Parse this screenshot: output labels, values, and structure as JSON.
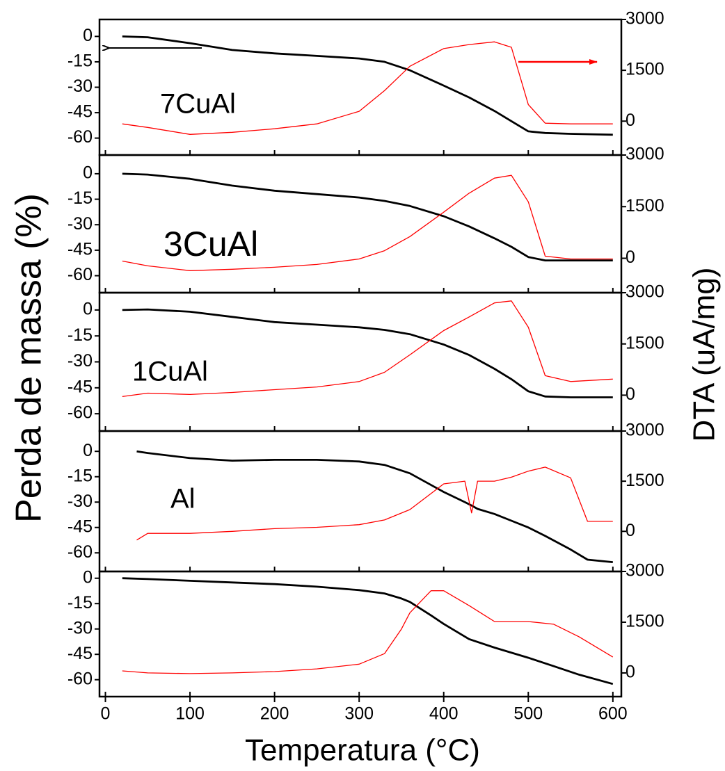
{
  "axes": {
    "xlabel": "Temperatura (°C)",
    "ylabel": "Perda de massa (%)",
    "y2label": "DTA (uA/mg)",
    "xlim": [
      -7,
      610
    ],
    "xticks": [
      0,
      100,
      200,
      300,
      400,
      500,
      600
    ]
  },
  "chart_data": [
    {
      "type": "line",
      "label": "7CuAl",
      "x": [
        20,
        50,
        100,
        150,
        200,
        250,
        300,
        330,
        360,
        400,
        430,
        460,
        480,
        500,
        520,
        550,
        600
      ],
      "ylim": [
        -70,
        10
      ],
      "yticks": [
        0,
        -15,
        -30,
        -45,
        -60
      ],
      "y2lim": [
        -1000,
        3000
      ],
      "y2ticks": [
        0,
        1500,
        3000
      ],
      "series": [
        {
          "color": "#000000",
          "axis": "y",
          "values": [
            0,
            -0.5,
            -4,
            -8,
            -10,
            -11.5,
            -13,
            -15,
            -20,
            -29,
            -36,
            -44,
            -50,
            -56,
            -57,
            -57.5,
            -58
          ]
        },
        {
          "color": "#ff0000",
          "axis": "y2",
          "values": [
            -80,
            -185,
            -390,
            -330,
            -225,
            -80,
            290,
            900,
            1620,
            2140,
            2260,
            2340,
            2180,
            490,
            -60,
            -80,
            -80
          ]
        }
      ]
    },
    {
      "type": "line",
      "label": "3CuAl",
      "x": [
        20,
        50,
        100,
        150,
        200,
        250,
        300,
        330,
        360,
        400,
        430,
        460,
        480,
        500,
        520,
        550,
        600
      ],
      "ylim": [
        -70,
        11
      ],
      "yticks": [
        0,
        -15,
        -30,
        -45,
        -60
      ],
      "y2lim": [
        -1000,
        3000
      ],
      "y2ticks": [
        0,
        1500,
        3000
      ],
      "series": [
        {
          "color": "#000000",
          "axis": "y",
          "values": [
            0,
            -0.5,
            -3,
            -7,
            -10,
            -12,
            -14,
            -16,
            -19,
            -25,
            -31,
            -38,
            -43,
            -49,
            -51,
            -51,
            -51
          ]
        },
        {
          "color": "#ff0000",
          "axis": "y2",
          "values": [
            -80,
            -220,
            -360,
            -320,
            -260,
            -180,
            -20,
            220,
            630,
            1340,
            1890,
            2330,
            2410,
            1640,
            60,
            -20,
            -20
          ]
        }
      ]
    },
    {
      "type": "line",
      "label": "1CuAl",
      "x": [
        20,
        50,
        100,
        150,
        200,
        250,
        300,
        330,
        360,
        400,
        430,
        460,
        480,
        500,
        520,
        550,
        600
      ],
      "ylim": [
        -70,
        10
      ],
      "yticks": [
        0,
        -15,
        -30,
        -45,
        -60
      ],
      "y2lim": [
        -1050,
        3000
      ],
      "y2ticks": [
        0,
        1500,
        3000
      ],
      "series": [
        {
          "color": "#000000",
          "axis": "y",
          "values": [
            0,
            0.3,
            -1,
            -4,
            -7,
            -8.5,
            -10,
            -11.5,
            -14,
            -20,
            -26,
            -34,
            -40,
            -47,
            -50,
            -50.5,
            -50.5
          ]
        },
        {
          "color": "#ff0000",
          "axis": "y2",
          "values": [
            -40,
            60,
            20,
            80,
            160,
            240,
            400,
            670,
            1180,
            1890,
            2290,
            2700,
            2760,
            1990,
            570,
            400,
            470
          ]
        }
      ]
    },
    {
      "type": "line",
      "label": "Al",
      "x": [
        37,
        50,
        100,
        150,
        200,
        250,
        300,
        330,
        360,
        400,
        425,
        433,
        440,
        460,
        480,
        500,
        520,
        550,
        570,
        600
      ],
      "ylim": [
        -71,
        12
      ],
      "yticks": [
        0,
        -15,
        -30,
        -45,
        -60
      ],
      "y2lim": [
        -1200,
        3000
      ],
      "y2ticks": [
        0,
        1500,
        3000
      ],
      "series": [
        {
          "color": "#000000",
          "axis": "y",
          "values": [
            0,
            -1,
            -4,
            -5.5,
            -5,
            -5,
            -6,
            -8,
            -13,
            -24,
            -30,
            -32,
            -34,
            -37,
            -41,
            -45,
            -50,
            -58,
            -64,
            -65.5
          ]
        },
        {
          "color": "#ff0000",
          "axis": "y2",
          "values": [
            -260,
            -60,
            -60,
            0,
            80,
            120,
            200,
            340,
            650,
            1420,
            1500,
            550,
            1500,
            1500,
            1620,
            1800,
            1920,
            1600,
            300,
            300
          ]
        }
      ]
    },
    {
      "type": "line",
      "x": [
        20,
        50,
        100,
        150,
        200,
        250,
        300,
        330,
        350,
        360,
        385,
        400,
        430,
        460,
        500,
        530,
        560,
        600
      ],
      "ylim": [
        -70,
        4
      ],
      "yticks": [
        0,
        -15,
        -30,
        -45,
        -60
      ],
      "y2lim": [
        -700,
        3000
      ],
      "y2ticks": [
        0,
        1500,
        3000
      ],
      "series": [
        {
          "color": "#000000",
          "axis": "y",
          "values": [
            0,
            -0.5,
            -1.5,
            -2.5,
            -3.5,
            -5,
            -7,
            -9,
            -12,
            -14,
            -22,
            -27,
            -36,
            -41,
            -47,
            -52,
            -57,
            -62.5
          ]
        },
        {
          "color": "#ff0000",
          "axis": "y2",
          "values": [
            60,
            0,
            -20,
            0,
            40,
            120,
            260,
            570,
            1300,
            1780,
            2430,
            2430,
            1990,
            1520,
            1520,
            1440,
            1070,
            470
          ]
        }
      ]
    }
  ]
}
